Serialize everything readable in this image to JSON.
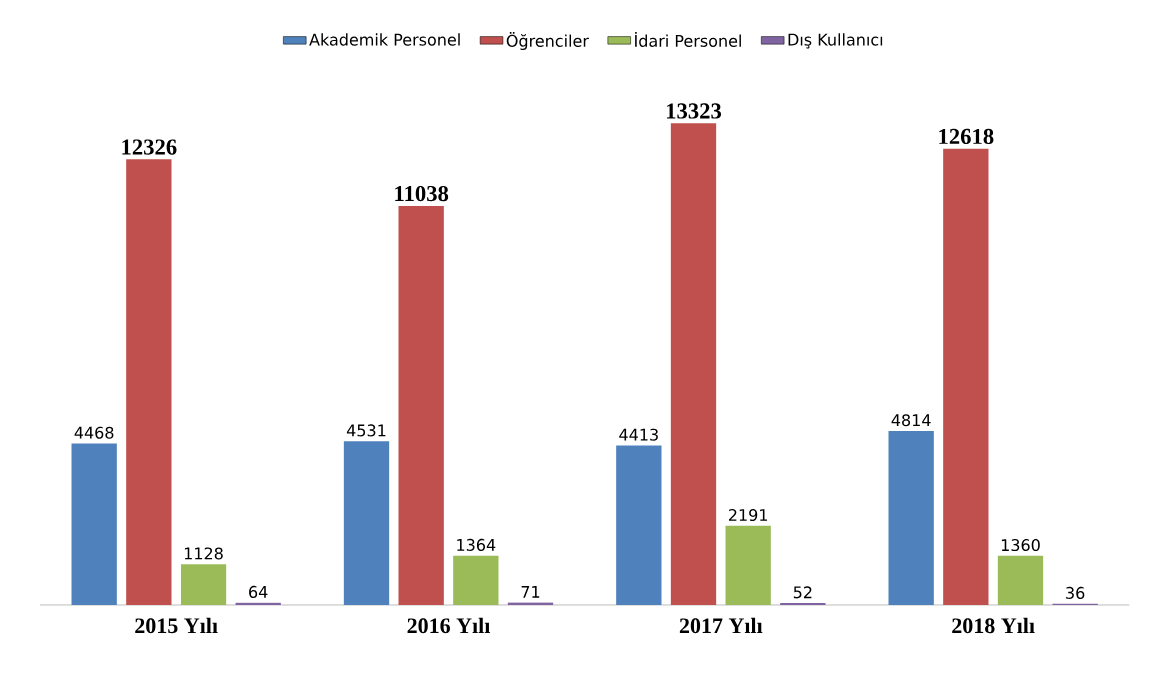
{
  "chart_data": {
    "type": "bar",
    "categories": [
      "2015 Yılı",
      "2016 Yılı",
      "2017 Yılı",
      "2018 Yılı"
    ],
    "series": [
      {
        "name": "Akademik Personel",
        "color": "#4f81bd",
        "values": [
          4468,
          4531,
          4413,
          4814
        ]
      },
      {
        "name": "Öğrenciler",
        "color": "#c0504d",
        "values": [
          12326,
          11038,
          13323,
          12618
        ]
      },
      {
        "name": "İdari Personel",
        "color": "#9bbb59",
        "values": [
          1128,
          1364,
          2191,
          1360
        ]
      },
      {
        "name": "Dış Kullanıcı",
        "color": "#8064a2",
        "values": [
          64,
          71,
          52,
          36
        ]
      }
    ],
    "data_labels": true,
    "legend": "top",
    "tick_labels": "x"
  }
}
